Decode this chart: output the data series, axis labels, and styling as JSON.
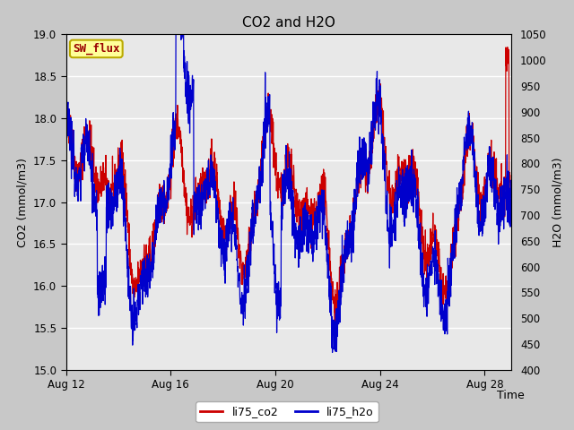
{
  "title": "CO2 and H2O",
  "xlabel": "Time",
  "ylabel_left": "CO2 (mmol/m3)",
  "ylabel_right": "H2O (mmol/m3)",
  "ylim_left": [
    15.0,
    19.0
  ],
  "ylim_right": [
    400,
    1050
  ],
  "yticks_left": [
    15.0,
    15.5,
    16.0,
    16.5,
    17.0,
    17.5,
    18.0,
    18.5,
    19.0
  ],
  "yticks_right": [
    400,
    450,
    500,
    550,
    600,
    650,
    700,
    750,
    800,
    850,
    900,
    950,
    1000,
    1050
  ],
  "xtick_labels": [
    "Aug 12",
    "Aug 16",
    "Aug 20",
    "Aug 24",
    "Aug 28"
  ],
  "xtick_positions": [
    0,
    4,
    8,
    12,
    16
  ],
  "xlim": [
    0,
    17
  ],
  "color_co2": "#cc0000",
  "color_h2o": "#0000cc",
  "legend_label_co2": "li75_co2",
  "legend_label_h2o": "li75_h2o",
  "sw_flux_label": "SW_flux",
  "fig_facecolor": "#c8c8c8",
  "ax_facecolor": "#e8e8e8",
  "grid_color": "#ffffff",
  "seed": 42,
  "n_points": 2000,
  "linewidth": 0.9
}
